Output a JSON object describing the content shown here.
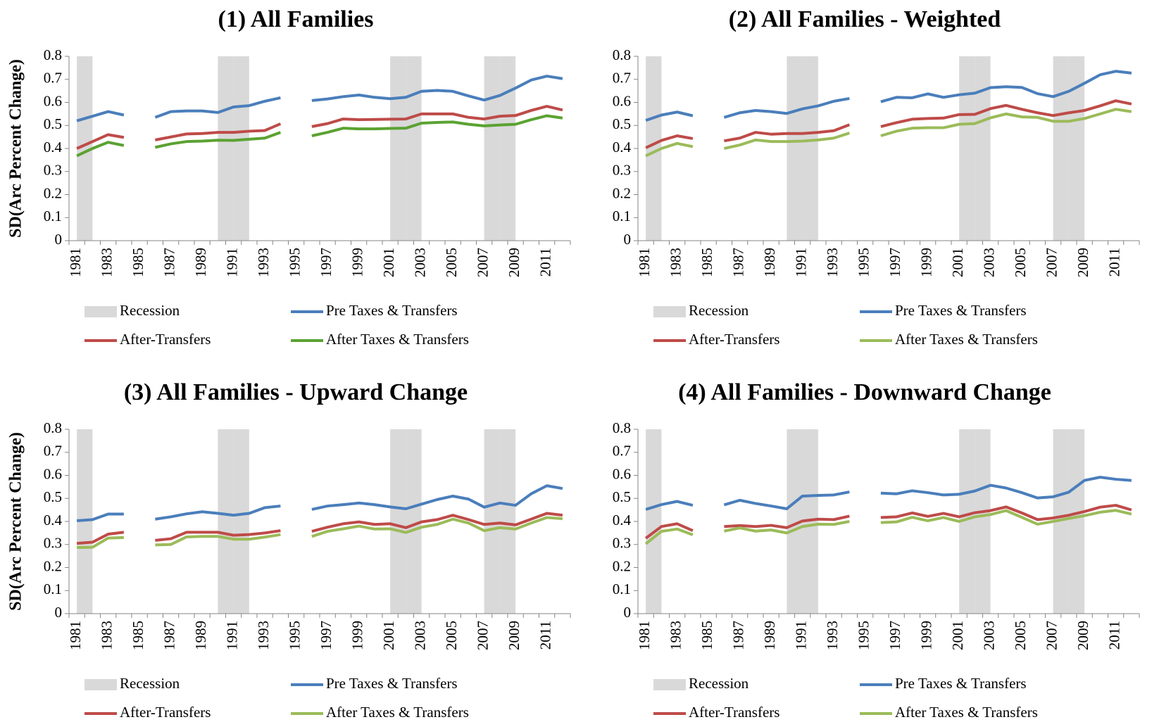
{
  "chart_data": [
    {
      "type": "line",
      "title": "(1) All Families",
      "y_label": "SD(Arc Percent Change)",
      "categories": [
        "1981",
        null,
        "1983",
        null,
        "1985",
        null,
        "1987",
        null,
        "1989",
        null,
        "1991",
        null,
        "1993",
        null,
        "1995",
        null,
        "1997",
        null,
        "1999",
        null,
        "2001",
        null,
        "2003",
        null,
        "2005",
        null,
        "2007",
        null,
        "2009",
        null,
        "2011",
        null
      ],
      "ylim": [
        0,
        0.8
      ],
      "yticks": [
        0,
        0.1,
        0.2,
        0.3,
        0.4,
        0.5,
        0.6,
        0.7,
        0.8
      ],
      "series": [
        {
          "name": "Recession",
          "type": "bar",
          "color": "#d9d9d9",
          "values": [
            0.8,
            null,
            null,
            null,
            null,
            null,
            null,
            null,
            null,
            0.8,
            0.8,
            null,
            null,
            null,
            null,
            null,
            null,
            null,
            null,
            null,
            0.8,
            0.8,
            null,
            null,
            null,
            null,
            0.8,
            0.8,
            null,
            null,
            null,
            null
          ]
        },
        {
          "name": "Pre Taxes & Transfers",
          "color": "#4a7ebb",
          "values": [
            0.52,
            0.54,
            0.56,
            0.545,
            null,
            0.535,
            0.56,
            0.563,
            0.563,
            0.556,
            0.58,
            0.586,
            0.605,
            0.62,
            null,
            0.608,
            0.615,
            0.625,
            0.632,
            0.622,
            0.616,
            0.622,
            0.648,
            0.652,
            0.648,
            0.628,
            0.61,
            0.63,
            0.662,
            0.697,
            0.714,
            0.703
          ]
        },
        {
          "name": "After-Transfers",
          "color": "#be4b48",
          "values": [
            0.4,
            0.43,
            0.46,
            0.448,
            null,
            0.437,
            0.45,
            0.463,
            0.465,
            0.47,
            0.47,
            0.475,
            0.478,
            0.507,
            null,
            0.495,
            0.508,
            0.528,
            0.525,
            0.526,
            0.527,
            0.528,
            0.55,
            0.55,
            0.55,
            0.535,
            0.528,
            0.54,
            0.543,
            0.565,
            0.583,
            0.567
          ]
        },
        {
          "name": "After Taxes & Transfers",
          "color": "#5ba232",
          "values": [
            0.368,
            0.4,
            0.427,
            0.413,
            null,
            0.405,
            0.42,
            0.43,
            0.432,
            0.436,
            0.435,
            0.44,
            0.445,
            0.47,
            null,
            0.455,
            0.47,
            0.488,
            0.485,
            0.485,
            0.487,
            0.488,
            0.51,
            0.513,
            0.515,
            0.505,
            0.498,
            0.502,
            0.505,
            0.525,
            0.542,
            0.532
          ]
        }
      ]
    },
    {
      "type": "line",
      "title": "(2) All Families - Weighted",
      "categories": [
        "1981",
        null,
        "1983",
        null,
        "1985",
        null,
        "1987",
        null,
        "1989",
        null,
        "1991",
        null,
        "1993",
        null,
        "1995",
        null,
        "1997",
        null,
        "1999",
        null,
        "2001",
        null,
        "2003",
        null,
        "2005",
        null,
        "2007",
        null,
        "2009",
        null,
        "2011",
        null
      ],
      "ylim": [
        0,
        0.8
      ],
      "yticks": [
        0,
        0.1,
        0.2,
        0.3,
        0.4,
        0.5,
        0.6,
        0.7,
        0.8
      ],
      "series": [
        {
          "name": "Recession",
          "type": "bar",
          "color": "#d9d9d9",
          "values": [
            0.8,
            null,
            null,
            null,
            null,
            null,
            null,
            null,
            null,
            0.8,
            0.8,
            null,
            null,
            null,
            null,
            null,
            null,
            null,
            null,
            null,
            0.8,
            0.8,
            null,
            null,
            null,
            null,
            0.8,
            0.8,
            null,
            null,
            null,
            null
          ]
        },
        {
          "name": "Pre Taxes & Transfers",
          "color": "#4a7ebb",
          "values": [
            0.522,
            0.545,
            0.558,
            0.542,
            null,
            0.535,
            0.555,
            0.565,
            0.56,
            0.552,
            0.572,
            0.585,
            0.605,
            0.617,
            null,
            0.603,
            0.622,
            0.62,
            0.637,
            0.622,
            0.633,
            0.64,
            0.664,
            0.668,
            0.665,
            0.638,
            0.625,
            0.648,
            0.683,
            0.72,
            0.735,
            0.727
          ]
        },
        {
          "name": "After-Transfers",
          "color": "#be4b48",
          "values": [
            0.403,
            0.435,
            0.455,
            0.443,
            null,
            0.433,
            0.445,
            0.47,
            0.462,
            0.465,
            0.465,
            0.47,
            0.477,
            0.503,
            null,
            0.495,
            0.512,
            0.527,
            0.53,
            0.532,
            0.547,
            0.548,
            0.573,
            0.587,
            0.57,
            0.555,
            0.543,
            0.555,
            0.565,
            0.585,
            0.607,
            0.593
          ]
        },
        {
          "name": "After Taxes & Transfers",
          "color": "#9bbb59",
          "values": [
            0.368,
            0.4,
            0.422,
            0.408,
            null,
            0.4,
            0.415,
            0.437,
            0.43,
            0.43,
            0.432,
            0.437,
            0.445,
            0.467,
            null,
            0.455,
            0.475,
            0.488,
            0.49,
            0.49,
            0.505,
            0.508,
            0.533,
            0.55,
            0.537,
            0.535,
            0.518,
            0.518,
            0.53,
            0.55,
            0.57,
            0.56
          ]
        }
      ]
    },
    {
      "type": "line",
      "title": "(3) All Families - Upward Change",
      "y_label": "SD(Arc Percent Change)",
      "categories": [
        "1981",
        null,
        "1983",
        null,
        "1985",
        null,
        "1987",
        null,
        "1989",
        null,
        "1991",
        null,
        "1993",
        null,
        "1995",
        null,
        "1997",
        null,
        "1999",
        null,
        "2001",
        null,
        "2003",
        null,
        "2005",
        null,
        "2007",
        null,
        "2009",
        null,
        "2011",
        null
      ],
      "ylim": [
        0,
        0.8
      ],
      "yticks": [
        0,
        0.1,
        0.2,
        0.3,
        0.4,
        0.5,
        0.6,
        0.7,
        0.8
      ],
      "series": [
        {
          "name": "Recession",
          "type": "bar",
          "color": "#d9d9d9",
          "values": [
            0.8,
            null,
            null,
            null,
            null,
            null,
            null,
            null,
            null,
            0.8,
            0.8,
            null,
            null,
            null,
            null,
            null,
            null,
            null,
            null,
            null,
            0.8,
            0.8,
            null,
            null,
            null,
            null,
            0.8,
            0.8,
            null,
            null,
            null,
            null
          ]
        },
        {
          "name": "Pre Taxes & Transfers",
          "color": "#4a7ebb",
          "values": [
            0.403,
            0.408,
            0.432,
            0.432,
            null,
            0.41,
            0.42,
            0.433,
            0.442,
            0.435,
            0.427,
            0.435,
            0.46,
            0.467,
            null,
            0.452,
            0.467,
            0.473,
            0.48,
            0.473,
            0.463,
            0.455,
            0.475,
            0.495,
            0.51,
            0.497,
            0.462,
            0.48,
            0.47,
            0.52,
            0.555,
            0.543
          ]
        },
        {
          "name": "After-Transfers",
          "color": "#be4b48",
          "values": [
            0.305,
            0.31,
            0.345,
            0.353,
            null,
            0.318,
            0.325,
            0.353,
            0.353,
            0.353,
            0.34,
            0.343,
            0.35,
            0.36,
            null,
            0.357,
            0.375,
            0.39,
            0.398,
            0.387,
            0.39,
            0.373,
            0.398,
            0.408,
            0.427,
            0.408,
            0.387,
            0.393,
            0.385,
            0.41,
            0.435,
            0.427
          ]
        },
        {
          "name": "After Taxes & Transfers",
          "color": "#9bbb59",
          "values": [
            0.287,
            0.288,
            0.328,
            0.33,
            null,
            0.298,
            0.3,
            0.333,
            0.335,
            0.335,
            0.323,
            0.323,
            0.332,
            0.343,
            null,
            0.335,
            0.357,
            0.368,
            0.38,
            0.367,
            0.368,
            0.352,
            0.375,
            0.387,
            0.41,
            0.393,
            0.36,
            0.373,
            0.367,
            0.393,
            0.417,
            0.412
          ]
        }
      ]
    },
    {
      "type": "line",
      "title": "(4) All Families - Downward Change",
      "categories": [
        "1981",
        null,
        "1983",
        null,
        "1985",
        null,
        "1987",
        null,
        "1989",
        null,
        "1991",
        null,
        "1993",
        null,
        "1995",
        null,
        "1997",
        null,
        "1999",
        null,
        "2001",
        null,
        "2003",
        null,
        "2005",
        null,
        "2007",
        null,
        "2009",
        null,
        "2011",
        null
      ],
      "ylim": [
        0,
        0.8
      ],
      "yticks": [
        0,
        0.1,
        0.2,
        0.3,
        0.4,
        0.5,
        0.6,
        0.7,
        0.8
      ],
      "series": [
        {
          "name": "Recession",
          "type": "bar",
          "color": "#d9d9d9",
          "values": [
            0.8,
            null,
            null,
            null,
            null,
            null,
            null,
            null,
            null,
            0.8,
            0.8,
            null,
            null,
            null,
            null,
            null,
            null,
            null,
            null,
            null,
            0.8,
            0.8,
            null,
            null,
            null,
            null,
            0.8,
            0.8,
            null,
            null,
            null,
            null
          ]
        },
        {
          "name": "Pre Taxes & Transfers",
          "color": "#4a7ebb",
          "values": [
            0.452,
            0.473,
            0.487,
            0.47,
            null,
            0.472,
            0.492,
            0.478,
            0.467,
            0.455,
            0.51,
            0.513,
            0.515,
            0.528,
            null,
            0.523,
            0.52,
            0.533,
            0.525,
            0.515,
            0.518,
            0.532,
            0.557,
            0.545,
            0.525,
            0.502,
            0.507,
            0.527,
            0.578,
            0.592,
            0.583,
            0.578
          ]
        },
        {
          "name": "After-Transfers",
          "color": "#be4b48",
          "values": [
            0.327,
            0.378,
            0.39,
            0.36,
            null,
            0.378,
            0.382,
            0.378,
            0.383,
            0.373,
            0.402,
            0.41,
            0.408,
            0.423,
            null,
            0.417,
            0.42,
            0.437,
            0.422,
            0.435,
            0.42,
            0.438,
            0.447,
            0.463,
            0.437,
            0.408,
            0.415,
            0.427,
            0.443,
            0.462,
            0.47,
            0.45
          ]
        },
        {
          "name": "After Taxes & Transfers",
          "color": "#9bbb59",
          "values": [
            0.303,
            0.357,
            0.367,
            0.342,
            null,
            0.358,
            0.372,
            0.358,
            0.363,
            0.35,
            0.378,
            0.388,
            0.387,
            0.4,
            null,
            0.395,
            0.398,
            0.418,
            0.403,
            0.417,
            0.4,
            0.42,
            0.43,
            0.447,
            0.418,
            0.388,
            0.4,
            0.413,
            0.425,
            0.44,
            0.448,
            0.432
          ]
        }
      ]
    }
  ]
}
